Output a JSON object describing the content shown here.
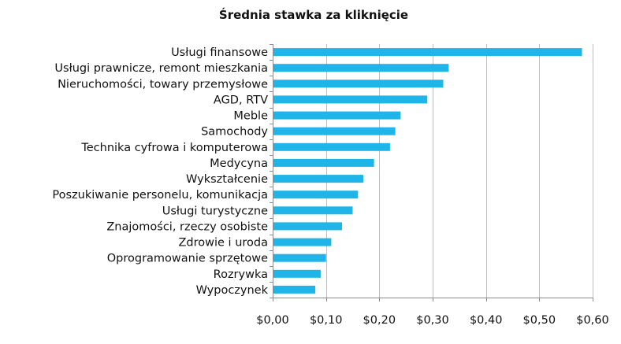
{
  "chart_data": {
    "type": "bar",
    "orientation": "horizontal",
    "title": "Średnia stawka za kliknięcie",
    "categories": [
      "Usługi finansowe",
      "Usługi prawnicze, remont mieszkania",
      "Nieruchomości, towary przemysłowe",
      "AGD, RTV",
      "Meble",
      "Samochody",
      "Technika cyfrowa i komputerowa",
      "Medycyna",
      "Wykształcenie",
      "Poszukiwanie personelu, komunikacja",
      "Usługi turystyczne",
      "Znajomości, rzeczy osobiste",
      "Zdrowie i uroda",
      "Oprogramowanie sprzętowe",
      "Rozrywka",
      "Wypoczynek"
    ],
    "values": [
      0.58,
      0.33,
      0.32,
      0.29,
      0.24,
      0.23,
      0.22,
      0.19,
      0.17,
      0.16,
      0.15,
      0.13,
      0.11,
      0.1,
      0.09,
      0.08
    ],
    "xlim": [
      0,
      0.6
    ],
    "xticks": [
      0,
      0.1,
      0.2,
      0.3,
      0.4,
      0.5,
      0.6
    ],
    "xtick_labels": [
      "$0,00",
      "$0,10",
      "$0,20",
      "$0,30",
      "$0,40",
      "$0,50",
      "$0,60"
    ],
    "xlabel": "",
    "ylabel": "",
    "grid": "vertical",
    "legend": "none",
    "bar_color": "#1fb5e8"
  }
}
